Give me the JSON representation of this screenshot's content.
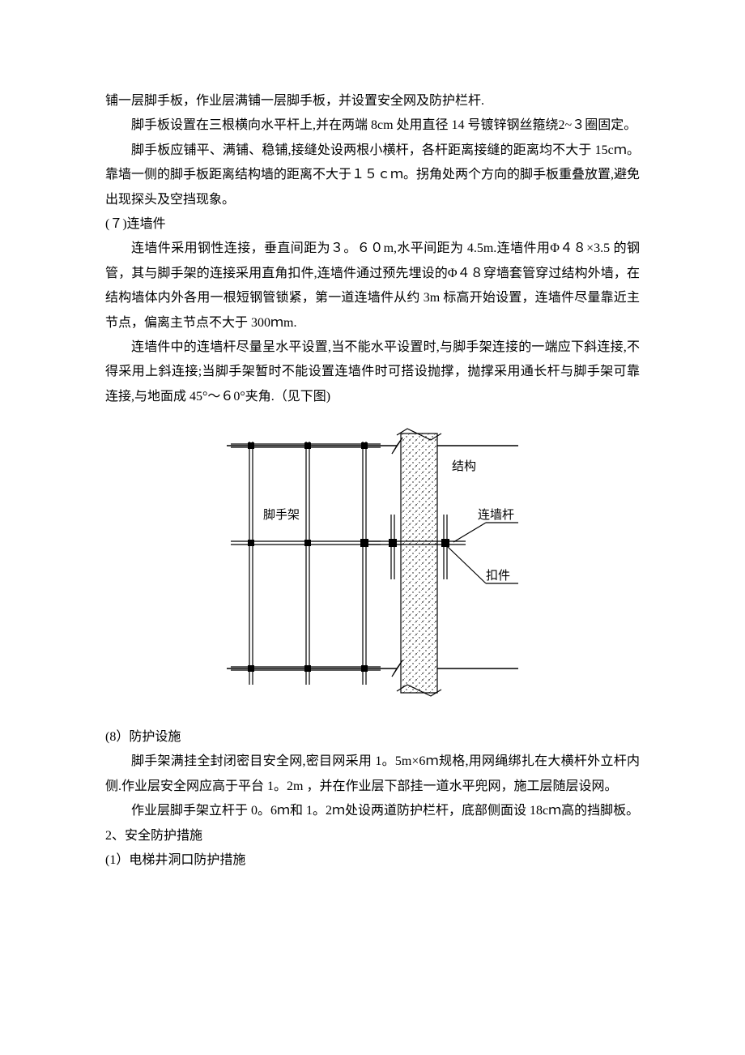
{
  "paragraphs": {
    "p1": "铺一层脚手板，作业层满铺一层脚手板，并设置安全网及防护栏杆.",
    "p2": "脚手板设置在三根横向水平杆上,并在两端 8cm 处用直径 14 号镀锌钢丝箍绕2~３圈固定。",
    "p3": "脚手板应铺平、满铺、稳铺,接缝处设两根小横杆，各杆距离接缝的距离均不大于 15cｍ。靠墙一侧的脚手板距离结构墙的距离不大于１５ｃｍ。拐角处两个方向的脚手板重叠放置,避免出现探头及空挡现象。",
    "p4": "(７)连墙件",
    "p5": "连墙件采用钢性连接，垂直间距为３。６０m,水平间距为 4.5m.连墙件用Φ４８×3.5 的钢管，其与脚手架的连接采用直角扣件,连墙件通过预先埋设的Φ４８穿墙套管穿过结构外墙，在结构墙体内外各用一根短钢管锁紧，第一道连墙件从约 3m 标高开始设置，连墙件尽量靠近主节点，偏离主节点不大于 300ｍm.",
    "p6": "连墙件中的连墙杆尽量呈水平设置,当不能水平设置时,与脚手架连接的一端应下斜连接,不得采用上斜连接;当脚手架暂时不能设置连墙件时可搭设抛撑，抛撑采用通长杆与脚手架可靠连接,与地面成 45°～６0°夹角.（见下图)",
    "p7": "(8）防护设施",
    "p8": "脚手架满挂全封闭密目安全网,密目网采用 1。5m×6ｍ规格,用网绳绑扎在大横杆外立杆内侧.作业层安全网应高于平台 1。2m ，并在作业层下部挂一道水平兜网，施工层随层设网。",
    "p9": "作业层脚手架立杆于 0。6ｍ和 1。2ｍ处设两道防护栏杆，底部侧面设 18cｍ高的挡脚板。",
    "p10": "2、安全防护措施",
    "p11": "(1）电梯井洞口防护措施"
  },
  "diagram": {
    "labels": {
      "scaffold": "脚手架",
      "structure": "结构",
      "tie_rod": "连墙杆",
      "clamp": "扣件"
    },
    "colors": {
      "stroke": "#000000",
      "fill_bg": "#ffffff",
      "hatch": "#000000"
    },
    "stroke_width": 1.2,
    "font_size": 15
  }
}
